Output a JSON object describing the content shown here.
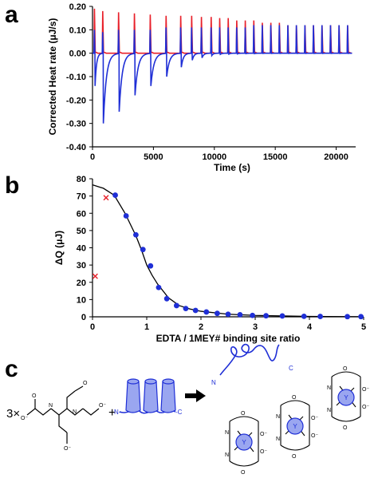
{
  "panel_labels": {
    "a": "a",
    "b": "b",
    "c": "c"
  },
  "colors": {
    "blue": "#1f2fd6",
    "red": "#e8202a",
    "black": "#000000",
    "fill_blue": "#9aa6f0"
  },
  "chart_data": [
    {
      "id": "panel-a",
      "type": "line",
      "xlabel": "Time (s)",
      "ylabel": "Corrected Heat rate (μJ/s)",
      "xlim": [
        0,
        21600
      ],
      "ylim": [
        -0.4,
        0.2
      ],
      "x_ticks": [
        0,
        5000,
        10000,
        15000,
        20000
      ],
      "y_ticks": [
        "0.20",
        "0.10",
        "0.00",
        "-0.10",
        "-0.20",
        "-0.30",
        "-0.40"
      ],
      "y_tick_values": [
        0.2,
        0.1,
        0.0,
        -0.1,
        -0.2,
        -0.3,
        -0.4
      ],
      "series": [
        {
          "color": "red",
          "injection_times": [
            120,
            800,
            2100,
            3400,
            4700,
            6000,
            7200,
            8100,
            8900,
            9700,
            10400,
            11100,
            11800,
            12500,
            13200,
            13900,
            14600,
            15300,
            16000,
            16700,
            17400,
            18100,
            18800,
            19500,
            20200,
            20900
          ],
          "spike_heights": [
            0.19,
            0.18,
            0.175,
            0.17,
            0.165,
            0.16,
            0.16,
            0.16,
            0.155,
            0.155,
            0.15,
            0.15,
            0.14,
            0.14,
            0.14,
            0.13,
            0.13,
            0.13,
            0.12,
            0.12,
            0.12,
            0.12,
            0.12,
            0.12,
            0.12,
            0.12
          ]
        },
        {
          "color": "blue",
          "injection_times": [
            120,
            800,
            2100,
            3400,
            4700,
            6000,
            7200,
            8100,
            8900,
            9700,
            10400,
            11100,
            11800,
            12500,
            13200,
            13900,
            14600,
            15300,
            16000,
            16700,
            17400,
            18100,
            18800,
            19500,
            20200,
            20900
          ],
          "spike_heights": [
            0.1,
            0.09,
            0.1,
            0.1,
            0.1,
            0.11,
            0.11,
            0.11,
            0.11,
            0.11,
            0.11,
            0.11,
            0.11,
            0.11,
            0.12,
            0.12,
            0.12,
            0.12,
            0.12,
            0.12,
            0.12,
            0.12,
            0.12,
            0.12,
            0.12,
            0.12
          ],
          "dip_minima": [
            -0.14,
            -0.3,
            -0.25,
            -0.18,
            -0.14,
            -0.1,
            -0.06,
            -0.03,
            -0.02,
            -0.01,
            -0.005,
            -0.004,
            -0.003,
            -0.002,
            -0.002,
            -0.001,
            -0.001,
            -0.001,
            -0.001,
            -0.001,
            -0.001,
            -0.001,
            -0.001,
            -0.001,
            -0.001,
            -0.001
          ]
        }
      ]
    },
    {
      "id": "panel-b",
      "type": "scatter",
      "xlabel": "EDTA / 1MEY# binding site ratio",
      "ylabel": "ΔQ (μJ)",
      "xlim": [
        0,
        5
      ],
      "ylim": [
        0,
        80
      ],
      "x_ticks": [
        0,
        1,
        2,
        3,
        4,
        5
      ],
      "y_ticks": [
        0,
        10,
        20,
        30,
        40,
        50,
        60,
        70,
        80
      ],
      "series": [
        {
          "marker": "circle",
          "color": "blue",
          "x": [
            0.42,
            0.62,
            0.8,
            0.93,
            1.07,
            1.22,
            1.37,
            1.55,
            1.72,
            1.9,
            2.1,
            2.3,
            2.5,
            2.72,
            2.95,
            3.2,
            3.5,
            3.9,
            4.2,
            4.7,
            4.95
          ],
          "y": [
            70.5,
            58.5,
            47.5,
            39,
            29.5,
            17,
            10.5,
            6.5,
            4.8,
            3.7,
            2.8,
            2,
            1.5,
            1.2,
            0.8,
            0.6,
            0.5,
            0.3,
            0.2,
            0.1,
            0.1
          ]
        },
        {
          "marker": "x",
          "color": "red",
          "x": [
            0.25,
            0.05
          ],
          "y": [
            69,
            23.5
          ]
        },
        {
          "type": "line",
          "color": "black",
          "x": [
            0.0,
            0.2,
            0.4,
            0.6,
            0.8,
            0.9,
            1.0,
            1.1,
            1.2,
            1.4,
            1.6,
            1.8,
            2.0,
            2.5,
            3.0,
            4.0,
            5.0
          ],
          "y": [
            76.5,
            74.5,
            70.5,
            60,
            47,
            39,
            30,
            24,
            19,
            11,
            6.5,
            4.5,
            3.2,
            1.5,
            0.8,
            0.2,
            0.05
          ]
        }
      ]
    }
  ],
  "scheme_c": {
    "multiplier": "3×",
    "plus": "+",
    "n_label": "N",
    "c_label": "C",
    "protein_n": "N-",
    "protein_c": "-C",
    "edta_o_minus": "O⁻",
    "edta_o": "O",
    "edta_n": "N",
    "y_label": "Y",
    "arrow": "⟶"
  }
}
